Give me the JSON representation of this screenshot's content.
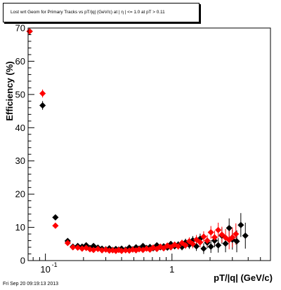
{
  "chart_data": {
    "type": "scatter",
    "title": "Lost wrt Geom for Primary Tracks vs pT/|q| (GeV/c) at | η | <= 1.0 at pT > 0.11",
    "xlabel": "pT/|q| (GeV/c)",
    "ylabel": "Efficiency (%)",
    "x_scale": "log",
    "xlim": [
      0.073,
      6.0
    ],
    "ylim": [
      0,
      70
    ],
    "y_ticks": [
      0,
      10,
      20,
      30,
      40,
      50,
      60,
      70
    ],
    "x_tick_labels": [
      {
        "value": 0.1,
        "label": "10",
        "exponent": "-1"
      },
      {
        "value": 1,
        "label": "1",
        "exponent": ""
      }
    ],
    "grid": false,
    "series": [
      {
        "color": "#000000",
        "points": [
          [
            0.075,
            69.0,
            0.0
          ],
          [
            0.095,
            46.7,
            1.3
          ],
          [
            0.12,
            13.0,
            0.8
          ],
          [
            0.15,
            5.9,
            0.5
          ],
          [
            0.165,
            4.2,
            0.4
          ],
          [
            0.18,
            4.4,
            0.4
          ],
          [
            0.195,
            4.2,
            0.4
          ],
          [
            0.21,
            4.6,
            0.4
          ],
          [
            0.225,
            3.8,
            0.4
          ],
          [
            0.24,
            4.4,
            0.4
          ],
          [
            0.26,
            3.9,
            0.4
          ],
          [
            0.28,
            3.6,
            0.4
          ],
          [
            0.3,
            3.4,
            0.4
          ],
          [
            0.32,
            3.7,
            0.4
          ],
          [
            0.34,
            3.2,
            0.4
          ],
          [
            0.36,
            3.5,
            0.4
          ],
          [
            0.38,
            3.3,
            0.4
          ],
          [
            0.4,
            3.6,
            0.5
          ],
          [
            0.43,
            3.3,
            0.5
          ],
          [
            0.46,
            3.9,
            0.5
          ],
          [
            0.49,
            3.4,
            0.5
          ],
          [
            0.52,
            4.0,
            0.5
          ],
          [
            0.55,
            3.6,
            0.5
          ],
          [
            0.59,
            4.4,
            0.6
          ],
          [
            0.63,
            3.8,
            0.6
          ],
          [
            0.67,
            4.1,
            0.6
          ],
          [
            0.71,
            3.7,
            0.6
          ],
          [
            0.76,
            4.6,
            0.7
          ],
          [
            0.81,
            4.0,
            0.7
          ],
          [
            0.86,
            4.3,
            0.8
          ],
          [
            0.92,
            3.9,
            0.8
          ],
          [
            0.98,
            5.0,
            0.9
          ],
          [
            1.05,
            4.3,
            0.9
          ],
          [
            1.12,
            4.8,
            1.0
          ],
          [
            1.2,
            4.1,
            1.0
          ],
          [
            1.28,
            5.5,
            1.1
          ],
          [
            1.37,
            4.7,
            1.2
          ],
          [
            1.46,
            6.1,
            1.3
          ],
          [
            1.56,
            4.3,
            1.4
          ],
          [
            1.67,
            6.6,
            1.5
          ],
          [
            1.78,
            3.6,
            1.6
          ],
          [
            1.9,
            5.4,
            1.7
          ],
          [
            2.03,
            4.2,
            1.9
          ],
          [
            2.17,
            6.0,
            2.0
          ],
          [
            2.32,
            4.6,
            2.2
          ],
          [
            2.48,
            7.5,
            2.4
          ],
          [
            2.65,
            5.1,
            2.6
          ],
          [
            2.83,
            9.8,
            2.9
          ],
          [
            3.0,
            6.3,
            3.0
          ],
          [
            3.25,
            5.8,
            3.3
          ],
          [
            3.5,
            10.7,
            3.6
          ],
          [
            3.8,
            7.5,
            3.9
          ]
        ]
      },
      {
        "color": "#ff0000",
        "points": [
          [
            0.075,
            69.0,
            0.0
          ],
          [
            0.095,
            50.3,
            1.2
          ],
          [
            0.12,
            10.5,
            0.8
          ],
          [
            0.15,
            5.3,
            0.5
          ],
          [
            0.165,
            4.0,
            0.4
          ],
          [
            0.18,
            3.9,
            0.4
          ],
          [
            0.195,
            3.6,
            0.4
          ],
          [
            0.21,
            3.8,
            0.4
          ],
          [
            0.225,
            3.4,
            0.4
          ],
          [
            0.24,
            3.2,
            0.4
          ],
          [
            0.26,
            3.5,
            0.4
          ],
          [
            0.28,
            3.1,
            0.4
          ],
          [
            0.3,
            3.3,
            0.4
          ],
          [
            0.32,
            3.0,
            0.4
          ],
          [
            0.34,
            3.1,
            0.4
          ],
          [
            0.36,
            2.9,
            0.4
          ],
          [
            0.38,
            3.2,
            0.4
          ],
          [
            0.4,
            2.9,
            0.5
          ],
          [
            0.43,
            3.1,
            0.5
          ],
          [
            0.46,
            3.0,
            0.5
          ],
          [
            0.49,
            3.3,
            0.5
          ],
          [
            0.52,
            3.1,
            0.5
          ],
          [
            0.55,
            3.4,
            0.5
          ],
          [
            0.59,
            3.2,
            0.6
          ],
          [
            0.63,
            3.6,
            0.6
          ],
          [
            0.67,
            3.3,
            0.6
          ],
          [
            0.71,
            3.9,
            0.6
          ],
          [
            0.76,
            3.5,
            0.7
          ],
          [
            0.81,
            4.2,
            0.7
          ],
          [
            0.86,
            3.7,
            0.8
          ],
          [
            0.92,
            4.5,
            0.8
          ],
          [
            0.98,
            4.0,
            0.9
          ],
          [
            1.05,
            4.8,
            0.9
          ],
          [
            1.12,
            4.3,
            1.0
          ],
          [
            1.2,
            5.3,
            1.0
          ],
          [
            1.28,
            4.6,
            1.1
          ],
          [
            1.37,
            5.8,
            1.2
          ],
          [
            1.46,
            5.0,
            1.3
          ],
          [
            1.56,
            6.3,
            1.4
          ],
          [
            1.67,
            5.5,
            1.5
          ],
          [
            1.78,
            7.2,
            1.6
          ],
          [
            1.9,
            6.0,
            1.7
          ],
          [
            2.03,
            8.5,
            1.9
          ],
          [
            2.17,
            7.0,
            2.0
          ],
          [
            2.32,
            9.2,
            2.2
          ],
          [
            2.48,
            7.8,
            2.4
          ],
          [
            2.65,
            6.9,
            2.6
          ],
          [
            2.83,
            6.2,
            2.8
          ],
          [
            3.0,
            7.0,
            3.0
          ],
          [
            3.2,
            8.0,
            3.2
          ]
        ]
      }
    ]
  },
  "footer": {
    "datestamp": "Fri Sep 20 09:19:13 2013"
  }
}
